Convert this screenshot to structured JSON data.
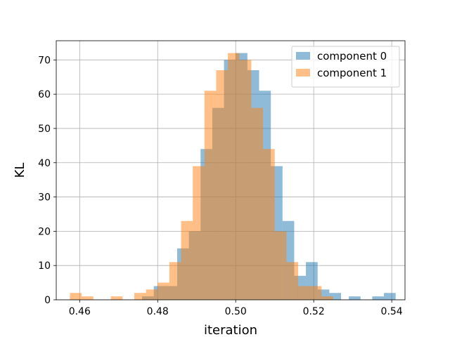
{
  "chart_data": {
    "type": "bar",
    "subtype": "histogram",
    "xlabel": "iteration",
    "ylabel": "KL",
    "xlim": [
      0.454,
      0.5434
    ],
    "ylim": [
      0,
      75.6
    ],
    "xticks": [
      "0.46",
      "0.48",
      "0.50",
      "0.52",
      "0.54"
    ],
    "xtick_values": [
      0.46,
      0.48,
      0.5,
      0.52,
      0.54
    ],
    "yticks": [
      "0",
      "10",
      "20",
      "30",
      "40",
      "50",
      "60",
      "70"
    ],
    "ytick_values": [
      0,
      10,
      20,
      30,
      40,
      50,
      60,
      70
    ],
    "grid": true,
    "legend_position": "top-right",
    "series": [
      {
        "name": "component 0",
        "color": "#1f77b4",
        "alpha": 0.5,
        "bins": [
          {
            "x0": 0.476,
            "x1": 0.479,
            "count": 1
          },
          {
            "x0": 0.479,
            "x1": 0.482,
            "count": 4
          },
          {
            "x0": 0.482,
            "x1": 0.485,
            "count": 4
          },
          {
            "x0": 0.485,
            "x1": 0.488,
            "count": 15
          },
          {
            "x0": 0.488,
            "x1": 0.491,
            "count": 20
          },
          {
            "x0": 0.491,
            "x1": 0.494,
            "count": 44
          },
          {
            "x0": 0.494,
            "x1": 0.497,
            "count": 56
          },
          {
            "x0": 0.497,
            "x1": 0.5,
            "count": 70
          },
          {
            "x0": 0.5,
            "x1": 0.503,
            "count": 72
          },
          {
            "x0": 0.503,
            "x1": 0.506,
            "count": 67
          },
          {
            "x0": 0.506,
            "x1": 0.509,
            "count": 61
          },
          {
            "x0": 0.509,
            "x1": 0.512,
            "count": 39
          },
          {
            "x0": 0.512,
            "x1": 0.515,
            "count": 23
          },
          {
            "x0": 0.515,
            "x1": 0.518,
            "count": 7
          },
          {
            "x0": 0.518,
            "x1": 0.521,
            "count": 11
          },
          {
            "x0": 0.521,
            "x1": 0.524,
            "count": 3
          },
          {
            "x0": 0.524,
            "x1": 0.527,
            "count": 2
          },
          {
            "x0": 0.529,
            "x1": 0.532,
            "count": 1
          },
          {
            "x0": 0.535,
            "x1": 0.538,
            "count": 1
          },
          {
            "x0": 0.538,
            "x1": 0.541,
            "count": 2
          }
        ]
      },
      {
        "name": "component 1",
        "color": "#ff7f0e",
        "alpha": 0.5,
        "bins": [
          {
            "x0": 0.4575,
            "x1": 0.4605,
            "count": 2
          },
          {
            "x0": 0.4605,
            "x1": 0.4635,
            "count": 1
          },
          {
            "x0": 0.468,
            "x1": 0.471,
            "count": 1
          },
          {
            "x0": 0.474,
            "x1": 0.477,
            "count": 2
          },
          {
            "x0": 0.477,
            "x1": 0.48,
            "count": 3
          },
          {
            "x0": 0.48,
            "x1": 0.483,
            "count": 5
          },
          {
            "x0": 0.483,
            "x1": 0.486,
            "count": 11
          },
          {
            "x0": 0.486,
            "x1": 0.489,
            "count": 23
          },
          {
            "x0": 0.489,
            "x1": 0.492,
            "count": 39
          },
          {
            "x0": 0.492,
            "x1": 0.495,
            "count": 61
          },
          {
            "x0": 0.495,
            "x1": 0.498,
            "count": 67
          },
          {
            "x0": 0.498,
            "x1": 0.501,
            "count": 72
          },
          {
            "x0": 0.501,
            "x1": 0.504,
            "count": 70
          },
          {
            "x0": 0.504,
            "x1": 0.507,
            "count": 56
          },
          {
            "x0": 0.507,
            "x1": 0.51,
            "count": 44
          },
          {
            "x0": 0.51,
            "x1": 0.513,
            "count": 20
          },
          {
            "x0": 0.513,
            "x1": 0.516,
            "count": 11
          },
          {
            "x0": 0.516,
            "x1": 0.519,
            "count": 4
          },
          {
            "x0": 0.519,
            "x1": 0.522,
            "count": 4
          },
          {
            "x0": 0.522,
            "x1": 0.525,
            "count": 1
          }
        ]
      }
    ]
  }
}
